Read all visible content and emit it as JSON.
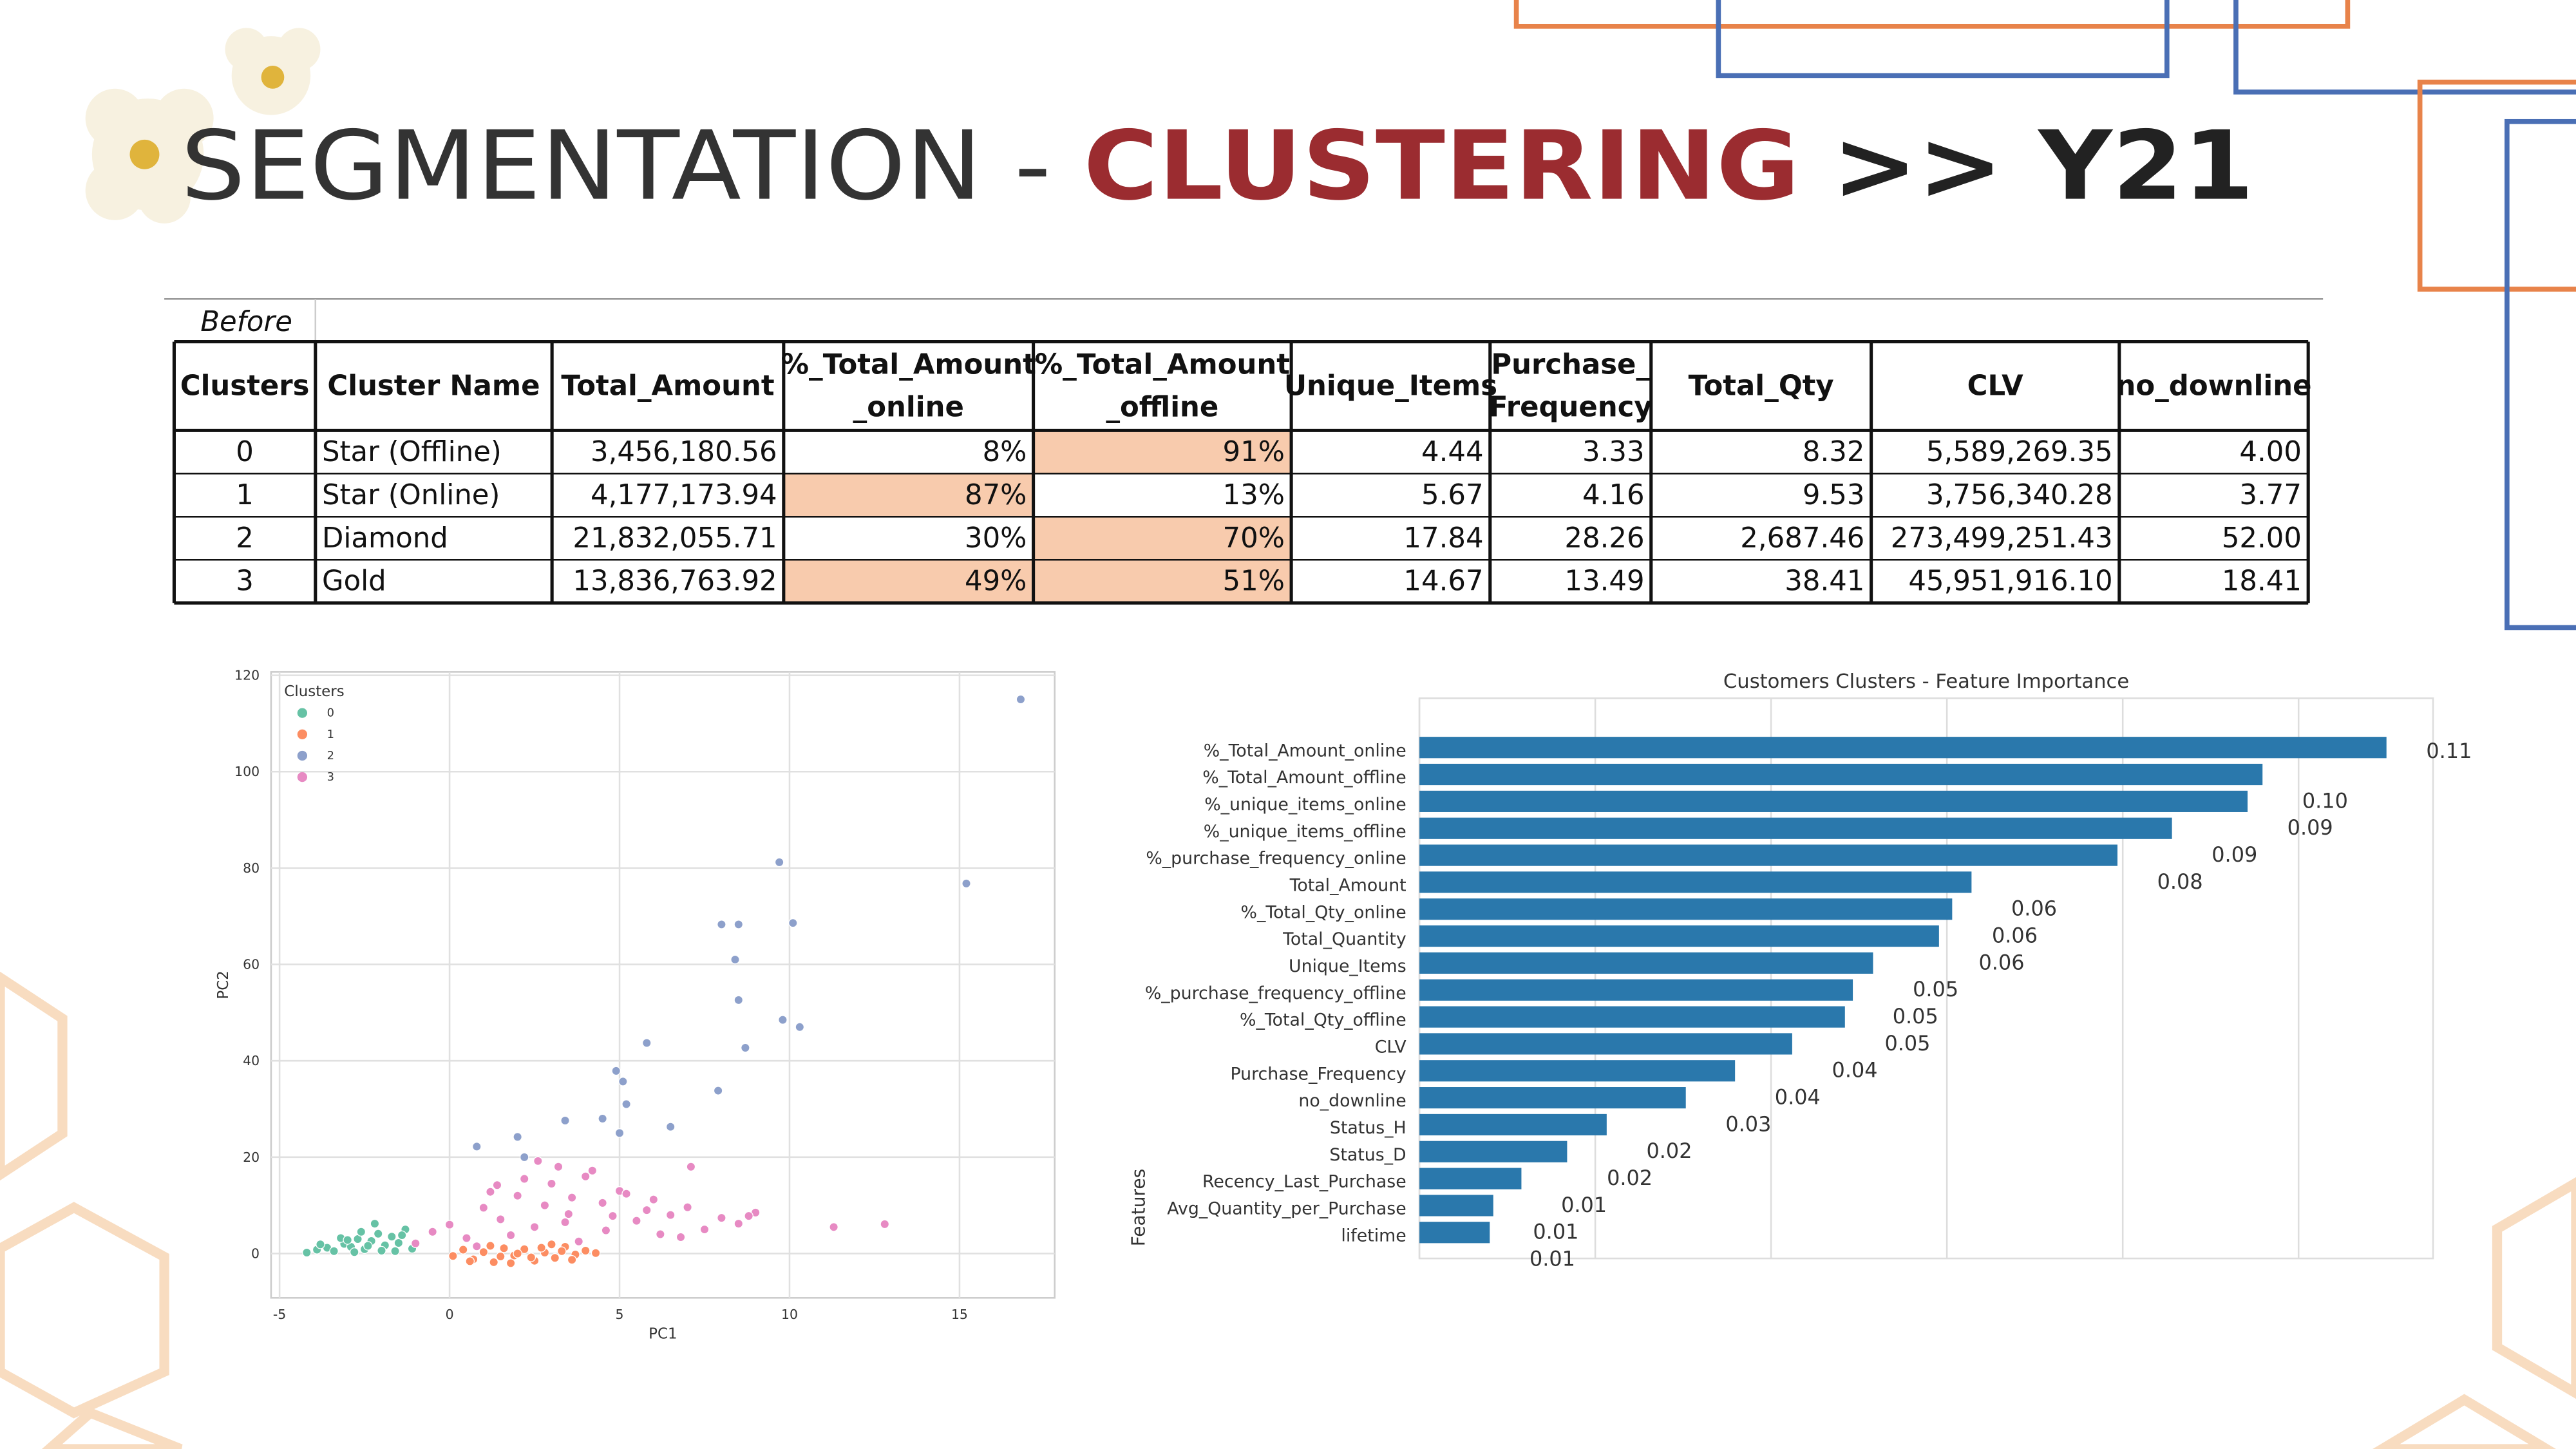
{
  "header": {
    "title": [
      "SEGMENTATION -",
      "CLUSTERING",
      ">> Y21"
    ]
  },
  "table": {
    "caption": "Before",
    "columns": [
      [
        "Clusters"
      ],
      [
        "Cluster Name"
      ],
      [
        "Total_Amount"
      ],
      [
        "%_Total_Amount",
        "_online"
      ],
      [
        "%_Total_Amount",
        "_offline"
      ],
      [
        "Unique_Items"
      ],
      [
        "Purchase_",
        "Frequency"
      ],
      [
        "Total_Qty"
      ],
      [
        "CLV"
      ],
      [
        "no_downline"
      ]
    ],
    "rows": [
      [
        "0",
        "Star (Offline)",
        "3,456,180.56",
        "8%",
        "91%",
        "4.44",
        "3.33",
        "8.32",
        "5,589,269.35",
        "4.00"
      ],
      [
        "1",
        "Star (Online)",
        "4,177,173.94",
        "87%",
        "13%",
        "5.67",
        "4.16",
        "9.53",
        "3,756,340.28",
        "3.77"
      ],
      [
        "2",
        "Diamond",
        "21,832,055.71",
        "30%",
        "70%",
        "17.84",
        "28.26",
        "2,687.46",
        "273,499,251.43",
        "52.00"
      ],
      [
        "3",
        "Gold",
        "13,836,763.92",
        "49%",
        "51%",
        "14.67",
        "13.49",
        "38.41",
        "45,951,916.10",
        "18.41"
      ]
    ]
  },
  "chart_data": [
    {
      "type": "scatter",
      "x_label": "PC1",
      "y_label": "PC2",
      "legend_title": "Clusters",
      "legend": "upper left",
      "grid": true,
      "xlim": [
        -5.25,
        17.8
      ],
      "ylim": [
        -9.2,
        120.7
      ],
      "xticks": [
        -5,
        0,
        5,
        10,
        15
      ],
      "yticks": [
        0,
        20,
        40,
        60,
        80,
        100,
        120
      ],
      "series": [
        {
          "name": "0",
          "color": "#66c2a5",
          "x": [
            -4.2,
            -3.9,
            -3.6,
            -3.4,
            -3.1,
            -2.9,
            -2.7,
            -2.5,
            -2.3,
            -2.1,
            -1.9,
            -1.7,
            -1.5,
            -1.3,
            -1.1,
            -3.8,
            -3.2,
            -2.6,
            -2.0,
            -1.4,
            -2.8,
            -2.2,
            -1.6,
            -3.0,
            -2.4
          ],
          "y": [
            0.2,
            0.8,
            1.2,
            0.5,
            2.0,
            1.4,
            3.0,
            0.9,
            2.6,
            4.1,
            1.7,
            3.5,
            2.2,
            5.0,
            1.0,
            1.9,
            3.2,
            4.5,
            0.6,
            3.8,
            0.3,
            6.2,
            0.5,
            2.8,
            1.6
          ]
        },
        {
          "name": "1",
          "color": "#fc8d62",
          "x": [
            0.1,
            0.4,
            0.7,
            1.0,
            1.3,
            1.6,
            1.9,
            2.2,
            2.5,
            2.8,
            3.1,
            3.4,
            3.7,
            4.0,
            4.3,
            0.6,
            1.2,
            1.8,
            2.4,
            3.0,
            3.6,
            2.0,
            2.7,
            1.5,
            3.3
          ],
          "y": [
            -0.5,
            0.8,
            -1.2,
            0.3,
            -1.8,
            1.1,
            -0.4,
            0.9,
            -1.5,
            0.2,
            -0.9,
            1.4,
            -0.2,
            0.6,
            0.1,
            -1.6,
            1.6,
            -2.0,
            -0.8,
            1.9,
            -1.3,
            0.0,
            1.2,
            -0.6,
            0.5
          ]
        },
        {
          "name": "2",
          "color": "#8da0cb",
          "x": [
            16.8,
            15.2,
            9.7,
            8.0,
            8.5,
            10.1,
            8.4,
            8.5,
            9.8,
            10.3,
            8.7,
            7.9,
            5.8,
            4.9,
            5.1,
            5.2,
            6.5,
            3.4,
            2.0,
            0.8,
            2.2,
            5.0,
            4.5
          ],
          "y": [
            115,
            76.8,
            81.2,
            68.3,
            68.3,
            68.6,
            61,
            52.6,
            48.5,
            47,
            42.7,
            33.8,
            43.7,
            37.9,
            35.7,
            31,
            26.3,
            27.6,
            24.2,
            22.2,
            20,
            25,
            28
          ]
        },
        {
          "name": "3",
          "color": "#e78ac3",
          "x": [
            -1.0,
            -0.5,
            0.0,
            0.5,
            1.0,
            1.5,
            2.0,
            2.5,
            3.0,
            3.5,
            4.0,
            4.5,
            5.0,
            5.5,
            6.0,
            6.5,
            7.0,
            7.5,
            8.0,
            8.5,
            9.0,
            1.2,
            2.2,
            3.2,
            4.2,
            5.2,
            6.2,
            0.8,
            1.8,
            2.8,
            3.8,
            4.8,
            5.8,
            6.8,
            2.6,
            3.6,
            4.6,
            1.4,
            3.4,
            7.1,
            8.8,
            11.3,
            12.8
          ],
          "y": [
            2.1,
            4.5,
            6.0,
            3.2,
            9.5,
            7.1,
            12.0,
            5.5,
            14.5,
            8.2,
            16.0,
            10.5,
            13.0,
            6.8,
            11.2,
            8.0,
            9.6,
            5.0,
            7.4,
            6.2,
            8.5,
            12.8,
            15.5,
            18.0,
            17.2,
            12.4,
            4.0,
            1.5,
            3.8,
            10.0,
            2.5,
            7.8,
            9.0,
            3.4,
            19.2,
            11.6,
            4.8,
            14.2,
            6.5,
            18.0,
            7.8,
            5.5,
            6.1
          ]
        }
      ]
    },
    {
      "type": "barh",
      "title": "Customers Clusters - Feature Importance",
      "y_label": "Features",
      "color": "#2a78ac",
      "grid": true,
      "xlim": [
        0,
        0.1153
      ],
      "xticks": [
        0,
        0.02,
        0.04,
        0.06,
        0.08,
        0.1
      ],
      "categories": [
        "%_Total_Amount_online",
        "%_Total_Amount_offline",
        "%_unique_items_online",
        "%_unique_items_offline",
        "%_purchase_frequency_online",
        "Total_Amount",
        "%_Total_Qty_online",
        "Total_Quantity",
        "Unique_Items",
        "%_purchase_frequency_offline",
        "%_Total_Qty_offline",
        "CLV",
        "Purchase_Frequency",
        "no_downline",
        "Status_H",
        "Status_D",
        "Recency_Last_Purchase",
        "Avg_Quantity_per_Purchase",
        "lifetime"
      ],
      "values": [
        0.11,
        0.0959,
        0.0942,
        0.0856,
        0.0794,
        0.0628,
        0.0606,
        0.0591,
        0.0516,
        0.0493,
        0.0484,
        0.0424,
        0.0359,
        0.0303,
        0.0213,
        0.0168,
        0.0116,
        0.0084,
        0.008
      ],
      "value_labels": [
        "0.11",
        "0.10",
        "0.09",
        "0.09",
        "0.08",
        "0.06",
        "0.06",
        "0.06",
        "0.05",
        "0.05",
        "0.05",
        "0.04",
        "0.04",
        "0.03",
        "0.02",
        "0.02",
        "0.01",
        "0.01",
        "0.01"
      ]
    }
  ]
}
